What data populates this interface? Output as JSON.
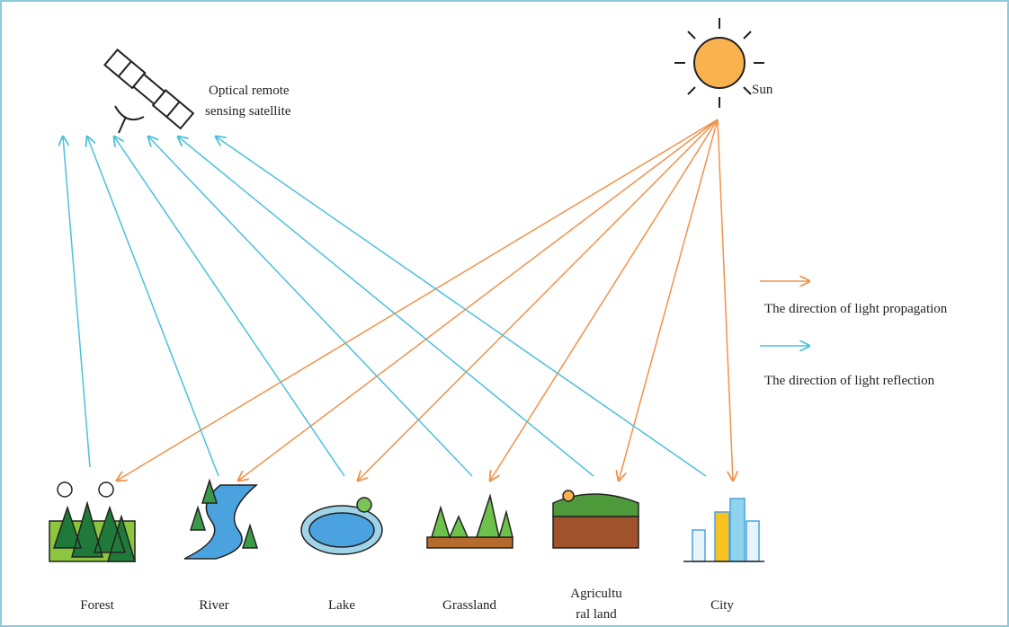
{
  "satellite": {
    "label": [
      "Optical remote",
      "sensing satellite"
    ]
  },
  "sun": {
    "label": "Sun"
  },
  "legend": [
    {
      "label": "The direction of light propagation"
    },
    {
      "label": "The direction of light reflection"
    }
  ],
  "nodes": [
    {
      "label": [
        "Forest"
      ]
    },
    {
      "label": [
        "River"
      ]
    },
    {
      "label": [
        "Lake"
      ]
    },
    {
      "label": [
        "Grassland"
      ]
    },
    {
      "label": [
        "Agricultu",
        "ral land"
      ]
    },
    {
      "label": [
        "City"
      ]
    }
  ]
}
